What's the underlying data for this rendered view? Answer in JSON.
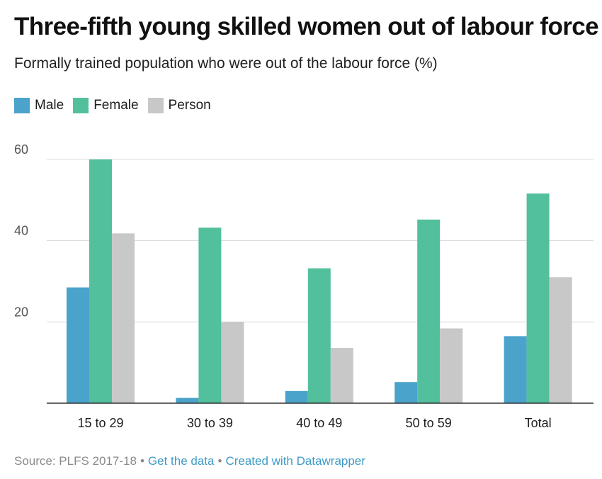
{
  "title": "Three-fifth young skilled women out of labour force",
  "subtitle": "Formally trained population who were out of the labour force (%)",
  "colors": {
    "Male": "#4aa3cb",
    "Female": "#52bf9d",
    "Person": "#c8c8c8",
    "grid": "#d8d8d8",
    "axis": "#333333",
    "tick_text": "#555555"
  },
  "chart_data": {
    "type": "bar",
    "categories": [
      "15 to 29",
      "30 to 39",
      "40 to 49",
      "50 to 59",
      "Total"
    ],
    "series": [
      {
        "name": "Male",
        "values": [
          28.5,
          1.3,
          3.0,
          5.2,
          16.5
        ]
      },
      {
        "name": "Female",
        "values": [
          60.0,
          43.2,
          33.2,
          45.2,
          51.6
        ]
      },
      {
        "name": "Person",
        "values": [
          41.8,
          20.0,
          13.6,
          18.4,
          31.0
        ]
      }
    ],
    "yticks": [
      "20",
      "40",
      "60"
    ],
    "ytick_values": [
      20,
      40,
      60
    ],
    "ylim": [
      0,
      60
    ],
    "grid": true,
    "legend_position": "top-left"
  },
  "footer": {
    "source": "Source: PLFS 2017-18",
    "separator": "•",
    "get_data": "Get the data",
    "created_with": "Created with Datawrapper"
  }
}
